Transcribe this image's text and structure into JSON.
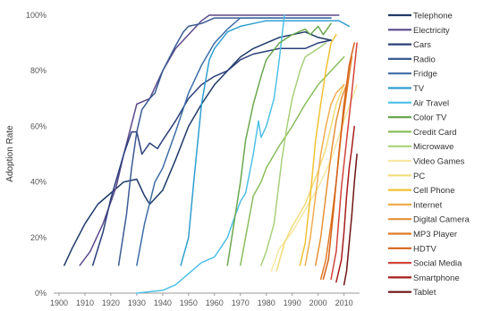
{
  "chart_data": {
    "type": "line",
    "title": "",
    "xlabel": "",
    "ylabel": "Adoption Rate",
    "xlim": [
      1900,
      2016
    ],
    "ylim": [
      0,
      100
    ],
    "x_ticks": [
      1900,
      1910,
      1920,
      1930,
      1940,
      1950,
      1960,
      1970,
      1980,
      1990,
      2000,
      2010
    ],
    "y_ticks": [
      {
        "value": 0,
        "label": "0%"
      },
      {
        "value": 20,
        "label": "20%"
      },
      {
        "value": 40,
        "label": "40%"
      },
      {
        "value": 60,
        "label": "60%"
      },
      {
        "value": 80,
        "label": "80%"
      },
      {
        "value": 100,
        "label": "100%"
      }
    ],
    "grid": false,
    "legend_position": "right",
    "series": [
      {
        "name": "Telephone",
        "color": "#1f3a68",
        "points": [
          [
            1902,
            10
          ],
          [
            1905,
            16
          ],
          [
            1910,
            25
          ],
          [
            1915,
            32
          ],
          [
            1920,
            36
          ],
          [
            1925,
            40
          ],
          [
            1930,
            41
          ],
          [
            1933,
            35
          ],
          [
            1935,
            32
          ],
          [
            1940,
            37
          ],
          [
            1945,
            48
          ],
          [
            1950,
            60
          ],
          [
            1955,
            68
          ],
          [
            1960,
            75
          ],
          [
            1965,
            80
          ],
          [
            1970,
            85
          ],
          [
            1975,
            88
          ],
          [
            1980,
            90
          ],
          [
            1985,
            92
          ],
          [
            1990,
            93
          ],
          [
            1995,
            94
          ],
          [
            2000,
            92
          ],
          [
            2005,
            91
          ]
        ]
      },
      {
        "name": "Electricity",
        "color": "#5b4a8b",
        "points": [
          [
            1908,
            10
          ],
          [
            1912,
            15
          ],
          [
            1917,
            25
          ],
          [
            1922,
            38
          ],
          [
            1925,
            50
          ],
          [
            1930,
            68
          ],
          [
            1935,
            70
          ],
          [
            1940,
            80
          ],
          [
            1945,
            88
          ],
          [
            1950,
            93
          ],
          [
            1953,
            96
          ],
          [
            1955,
            98
          ],
          [
            1958,
            100
          ],
          [
            2008,
            100
          ]
        ]
      },
      {
        "name": "Cars",
        "color": "#2a3f7a",
        "points": [
          [
            1913,
            10
          ],
          [
            1917,
            22
          ],
          [
            1920,
            34
          ],
          [
            1925,
            50
          ],
          [
            1928,
            58
          ],
          [
            1930,
            58
          ],
          [
            1932,
            50
          ],
          [
            1935,
            54
          ],
          [
            1938,
            52
          ],
          [
            1940,
            55
          ],
          [
            1945,
            62
          ],
          [
            1950,
            70
          ],
          [
            1955,
            75
          ],
          [
            1960,
            78
          ],
          [
            1965,
            80
          ],
          [
            1970,
            84
          ],
          [
            1975,
            86
          ],
          [
            1980,
            87
          ],
          [
            1985,
            88
          ],
          [
            1990,
            88
          ],
          [
            1995,
            88
          ],
          [
            2000,
            90
          ],
          [
            2005,
            91
          ]
        ]
      },
      {
        "name": "Radio",
        "color": "#3a5a92",
        "points": [
          [
            1923,
            10
          ],
          [
            1926,
            28
          ],
          [
            1928,
            45
          ],
          [
            1930,
            58
          ],
          [
            1932,
            66
          ],
          [
            1935,
            70
          ],
          [
            1937,
            72
          ],
          [
            1940,
            80
          ],
          [
            1945,
            89
          ],
          [
            1948,
            94
          ],
          [
            1950,
            96
          ],
          [
            1955,
            97
          ],
          [
            1960,
            99
          ],
          [
            2005,
            99
          ]
        ]
      },
      {
        "name": "Fridge",
        "color": "#3e6da6",
        "points": [
          [
            1930,
            10
          ],
          [
            1933,
            25
          ],
          [
            1937,
            40
          ],
          [
            1940,
            45
          ],
          [
            1945,
            58
          ],
          [
            1950,
            72
          ],
          [
            1955,
            82
          ],
          [
            1960,
            90
          ],
          [
            1965,
            95
          ],
          [
            1970,
            99
          ],
          [
            2005,
            99
          ]
        ]
      },
      {
        "name": "TV",
        "color": "#2f9fd0",
        "points": [
          [
            1947,
            10
          ],
          [
            1950,
            20
          ],
          [
            1952,
            40
          ],
          [
            1955,
            68
          ],
          [
            1958,
            84
          ],
          [
            1960,
            88
          ],
          [
            1965,
            94
          ],
          [
            1970,
            96
          ],
          [
            1975,
            97
          ],
          [
            1980,
            98
          ],
          [
            1990,
            98
          ],
          [
            2000,
            98
          ],
          [
            2008,
            98
          ],
          [
            2012,
            96
          ]
        ]
      },
      {
        "name": "Air Travel",
        "color": "#4fc0e8",
        "points": [
          [
            1930,
            0
          ],
          [
            1935,
            0.5
          ],
          [
            1940,
            1
          ],
          [
            1945,
            3
          ],
          [
            1950,
            7
          ],
          [
            1955,
            11
          ],
          [
            1960,
            13
          ],
          [
            1965,
            20
          ],
          [
            1968,
            28
          ],
          [
            1970,
            33
          ],
          [
            1972,
            36
          ],
          [
            1975,
            50
          ],
          [
            1977,
            62
          ],
          [
            1978,
            56
          ],
          [
            1980,
            60
          ],
          [
            1983,
            70
          ],
          [
            1985,
            84
          ],
          [
            1987,
            100
          ]
        ]
      },
      {
        "name": "Color TV",
        "color": "#6aa84f",
        "points": [
          [
            1965,
            10
          ],
          [
            1968,
            28
          ],
          [
            1970,
            40
          ],
          [
            1972,
            55
          ],
          [
            1975,
            68
          ],
          [
            1978,
            78
          ],
          [
            1980,
            84
          ],
          [
            1985,
            90
          ],
          [
            1990,
            93
          ],
          [
            1995,
            95
          ],
          [
            1997,
            93
          ],
          [
            2000,
            96
          ],
          [
            2002,
            93
          ],
          [
            2005,
            97
          ]
        ]
      },
      {
        "name": "Credit Card",
        "color": "#8bbd5e",
        "points": [
          [
            1970,
            10
          ],
          [
            1973,
            25
          ],
          [
            1975,
            35
          ],
          [
            1978,
            40
          ],
          [
            1980,
            45
          ],
          [
            1985,
            53
          ],
          [
            1990,
            60
          ],
          [
            1995,
            68
          ],
          [
            2000,
            75
          ],
          [
            2005,
            80
          ],
          [
            2010,
            85
          ]
        ]
      },
      {
        "name": "Microwave",
        "color": "#a8d07a",
        "points": [
          [
            1978,
            10
          ],
          [
            1980,
            15
          ],
          [
            1983,
            25
          ],
          [
            1986,
            48
          ],
          [
            1988,
            60
          ],
          [
            1990,
            70
          ],
          [
            1993,
            80
          ],
          [
            1995,
            85
          ],
          [
            2000,
            88
          ],
          [
            2003,
            90
          ]
        ]
      },
      {
        "name": "Video Games",
        "color": "#f6e7a2",
        "points": [
          [
            1982,
            8
          ],
          [
            1985,
            16
          ],
          [
            1990,
            22
          ],
          [
            1995,
            30
          ],
          [
            2000,
            38
          ],
          [
            2005,
            48
          ],
          [
            2010,
            62
          ],
          [
            2015,
            75
          ]
        ]
      },
      {
        "name": "PC",
        "color": "#f2dc7a",
        "points": [
          [
            1984,
            8
          ],
          [
            1987,
            18
          ],
          [
            1990,
            24
          ],
          [
            1995,
            32
          ],
          [
            2000,
            44
          ],
          [
            2003,
            52
          ],
          [
            2007,
            68
          ],
          [
            2010,
            75
          ]
        ]
      },
      {
        "name": "Cell Phone",
        "color": "#f1c232",
        "points": [
          [
            1993,
            10
          ],
          [
            1995,
            18
          ],
          [
            1997,
            35
          ],
          [
            1999,
            55
          ],
          [
            2001,
            68
          ],
          [
            2003,
            80
          ],
          [
            2005,
            90
          ],
          [
            2007,
            93
          ]
        ]
      },
      {
        "name": "Internet",
        "color": "#f0ad4e",
        "points": [
          [
            1995,
            10
          ],
          [
            1997,
            20
          ],
          [
            1999,
            35
          ],
          [
            2001,
            50
          ],
          [
            2003,
            60
          ],
          [
            2005,
            68
          ],
          [
            2007,
            72
          ],
          [
            2010,
            75
          ]
        ]
      },
      {
        "name": "Digital Camera",
        "color": "#e69138",
        "points": [
          [
            1999,
            10
          ],
          [
            2001,
            20
          ],
          [
            2003,
            35
          ],
          [
            2005,
            50
          ],
          [
            2007,
            62
          ],
          [
            2009,
            70
          ],
          [
            2011,
            75
          ]
        ]
      },
      {
        "name": "MP3 Player",
        "color": "#e07b27",
        "points": [
          [
            2001,
            5
          ],
          [
            2003,
            12
          ],
          [
            2005,
            25
          ],
          [
            2007,
            40
          ],
          [
            2009,
            58
          ],
          [
            2011,
            72
          ],
          [
            2013,
            85
          ]
        ]
      },
      {
        "name": "HDTV",
        "color": "#d4621a",
        "points": [
          [
            2002,
            5
          ],
          [
            2004,
            12
          ],
          [
            2006,
            30
          ],
          [
            2008,
            50
          ],
          [
            2010,
            68
          ],
          [
            2012,
            82
          ],
          [
            2014,
            90
          ]
        ]
      },
      {
        "name": "Social Media",
        "color": "#d1443a",
        "points": [
          [
            2005,
            5
          ],
          [
            2007,
            15
          ],
          [
            2009,
            38
          ],
          [
            2011,
            55
          ],
          [
            2013,
            72
          ],
          [
            2015,
            90
          ]
        ]
      },
      {
        "name": "Smartphone",
        "color": "#a61c1c",
        "points": [
          [
            2007,
            4
          ],
          [
            2009,
            12
          ],
          [
            2010,
            22
          ],
          [
            2011,
            35
          ],
          [
            2012,
            45
          ],
          [
            2013,
            52
          ],
          [
            2014,
            60
          ]
        ]
      },
      {
        "name": "Tablet",
        "color": "#6e1414",
        "points": [
          [
            2010,
            3
          ],
          [
            2011,
            8
          ],
          [
            2012,
            18
          ],
          [
            2013,
            28
          ],
          [
            2014,
            40
          ],
          [
            2015,
            50
          ]
        ]
      }
    ]
  }
}
